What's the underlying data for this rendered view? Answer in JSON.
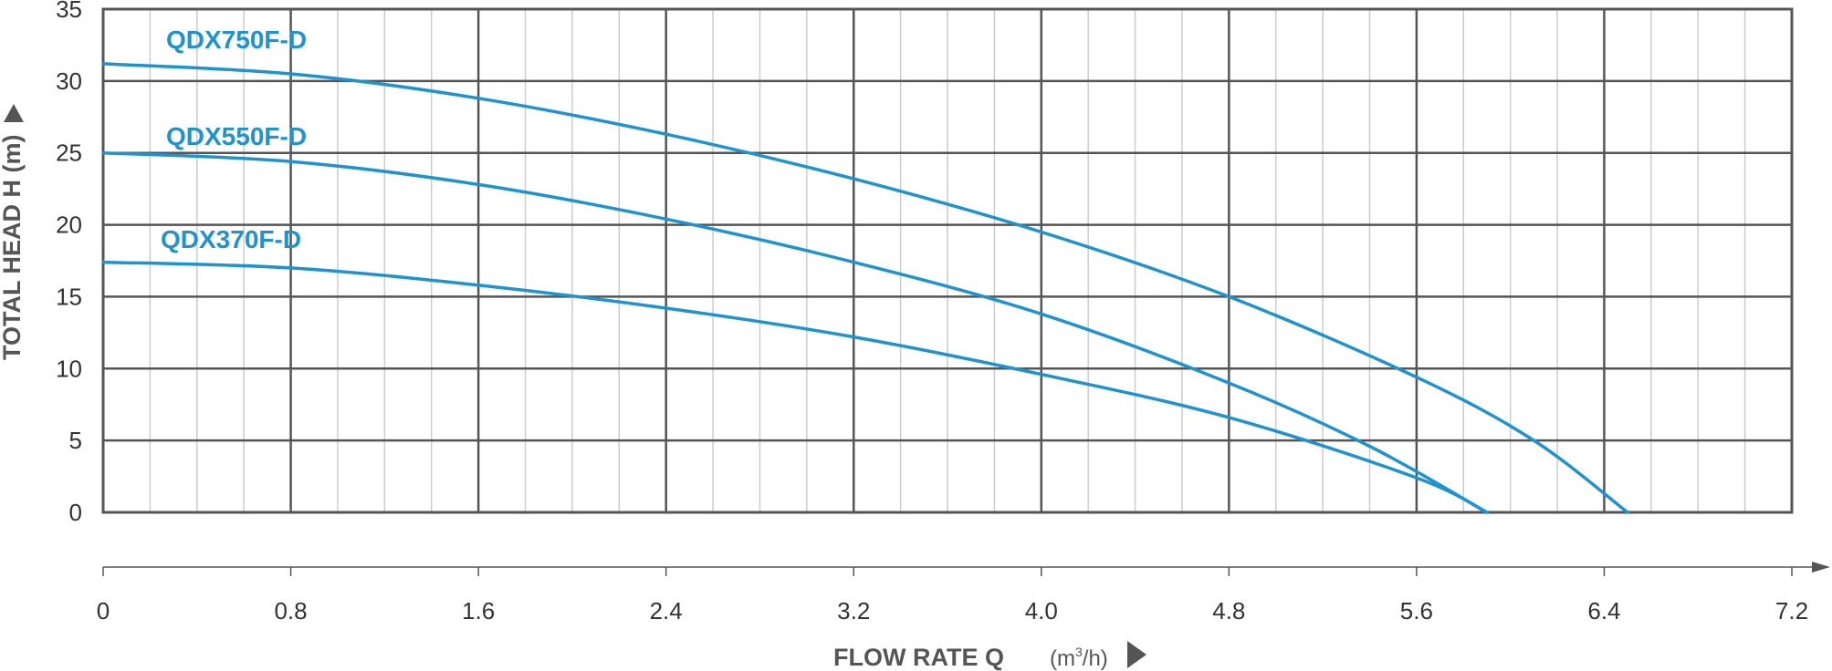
{
  "chart_data": {
    "type": "line",
    "title": "",
    "xlabel": "FLOW RATE Q",
    "xunit_base": "(m",
    "xunit_sup": "3",
    "xunit_end": "/h)",
    "ylabel": "TOTAL HEAD H (m)",
    "xlim": [
      0,
      7.2
    ],
    "ylim": [
      0,
      35
    ],
    "xticks": [
      "0",
      "0.8",
      "1.6",
      "2.4",
      "3.2",
      "4.0",
      "4.8",
      "5.6",
      "6.4",
      "7.2"
    ],
    "yticks": [
      "0",
      "5",
      "10",
      "15",
      "20",
      "25",
      "30",
      "35"
    ],
    "grid": true,
    "colors": {
      "line": "#1f93d0",
      "grid_major": "#555555",
      "grid_minor": "#cccccc"
    },
    "series": [
      {
        "name": "QDX750F-D",
        "x": [
          0,
          0.8,
          1.6,
          2.4,
          3.2,
          4.0,
          4.8,
          5.6,
          6.1,
          6.5
        ],
        "y": [
          31.2,
          30.5,
          28.8,
          26.3,
          23.2,
          19.5,
          15.0,
          9.4,
          5.0,
          0
        ]
      },
      {
        "name": "QDX550F-D",
        "x": [
          0,
          0.8,
          1.6,
          2.4,
          3.2,
          4.0,
          4.8,
          5.4,
          5.9
        ],
        "y": [
          25.0,
          24.4,
          22.8,
          20.4,
          17.4,
          13.8,
          9.0,
          4.6,
          0
        ]
      },
      {
        "name": "QDX370F-D",
        "x": [
          0,
          0.8,
          1.6,
          2.4,
          3.2,
          4.0,
          4.8,
          5.6,
          5.9
        ],
        "y": [
          17.4,
          17.0,
          15.8,
          14.2,
          12.2,
          9.6,
          6.6,
          2.4,
          0
        ]
      }
    ]
  }
}
